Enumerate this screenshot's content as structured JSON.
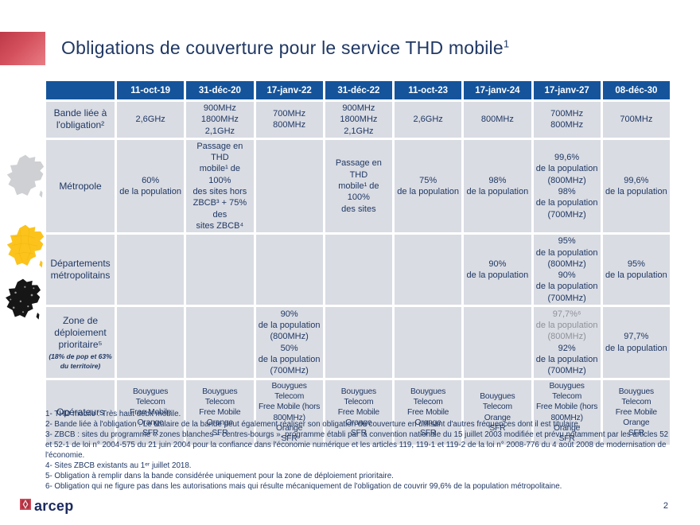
{
  "title": {
    "text": "Obligations de couverture pour le service THD mobile",
    "sup": "1"
  },
  "colors": {
    "header_bg": "#15549B",
    "cell_bg": "#D9DCE3",
    "text_navy": "#203864",
    "muted_gray": "#8F9299",
    "accent_red": "#C94753",
    "map_gray": "#CFD0D3",
    "map_yellow": "#FBC31C",
    "map_black": "#1a1a1a"
  },
  "table": {
    "columns": [
      "11-oct-19",
      "31-déc-20",
      "17-janv-22",
      "31-déc-22",
      "11-oct-23",
      "17-janv-24",
      "17-janv-27",
      "08-déc-30"
    ],
    "rows": [
      {
        "label": [
          "Bande liée à",
          "l'obligation²"
        ],
        "cells": [
          [
            "2,6GHz"
          ],
          [
            "900MHz",
            "1800MHz",
            "2,1GHz"
          ],
          [
            "700MHz",
            "800MHz"
          ],
          [
            "900MHz",
            "1800MHz",
            "2,1GHz"
          ],
          [
            "2,6GHz"
          ],
          [
            "800MHz"
          ],
          [
            "700MHz",
            "800MHz"
          ],
          [
            "700MHz"
          ]
        ]
      },
      {
        "label": [
          "Métropole"
        ],
        "icon": "france-map-gray",
        "cells": [
          [
            "60%",
            "de la population"
          ],
          [
            "Passage en THD",
            "mobile¹ de 100%",
            "des sites  hors",
            "ZBCB³ + 75% des",
            "sites ZBCB⁴"
          ],
          [],
          [
            "Passage en THD",
            "mobile¹ de 100%",
            "des sites"
          ],
          [
            "75%",
            "de la population"
          ],
          [
            "98%",
            "de la population"
          ],
          [
            "99,6%",
            "de la population",
            "(800MHz)",
            "98%",
            "de la population",
            "(700MHz)"
          ],
          [
            "99,6%",
            "de la population"
          ]
        ]
      },
      {
        "label": [
          "Départements",
          "métropolitains"
        ],
        "icon": "france-map-yellow",
        "cells": [
          [],
          [],
          [],
          [],
          [],
          [
            "90%",
            "de la population"
          ],
          [
            "95%",
            "de la population",
            "(800MHz)",
            "90%",
            "de la population",
            "(700MHz)"
          ],
          [
            "95%",
            "de la population"
          ]
        ]
      },
      {
        "label": [
          "Zone de",
          "déploiement",
          "prioritaire⁵"
        ],
        "note": [
          "(18% de pop et 63%",
          "du territoire)"
        ],
        "icon": "france-map-dots",
        "cells": [
          [],
          [],
          [
            "90%",
            "de la population",
            "(800MHz)",
            "50%",
            "de la population",
            "(700MHz)"
          ],
          [],
          [],
          [],
          [
            {
              "text": "97,7%⁶",
              "muted": true
            },
            {
              "text": "de la population",
              "muted": true
            },
            {
              "text": "(800MHz)",
              "muted": true
            },
            "92%",
            "de la population",
            "(700MHz)"
          ],
          [
            "97,7%",
            "de la population"
          ]
        ]
      },
      {
        "label": [
          "Opérateurs"
        ],
        "small": true,
        "cells": [
          [
            "Bouygues Telecom",
            "Free Mobile",
            "Orange",
            "SFR"
          ],
          [
            "Bouygues Telecom",
            "Free Mobile",
            "Orange",
            "SFR"
          ],
          [
            "Bouygues Telecom",
            "Free Mobile (hors",
            "800MHz)",
            "Orange",
            "SFR"
          ],
          [
            "Bouygues Telecom",
            "Free Mobile",
            "Orange",
            "SFR"
          ],
          [
            "Bouygues Telecom",
            "Free Mobile",
            "Orange",
            "SFR"
          ],
          [
            "Bouygues Telecom",
            "Orange",
            "SFR"
          ],
          [
            "Bouygues Telecom",
            "Free Mobile (hors",
            "800MHz)",
            "Orange",
            "SFR"
          ],
          [
            "Bouygues Telecom",
            "Free Mobile",
            "Orange",
            "SFR"
          ]
        ]
      }
    ]
  },
  "footnotes": [
    "1- THD mobile : Très haut débit mobile.",
    "2- Bande liée à l'obligation : Le titulaire de la bande peut également réaliser son obligation de couverture en utilisant d'autres fréquences dont il est titulaire.",
    "3- ZBCB : sites du programme « zones blanches – centres-bourgs », programme établi par la convention nationale du 15 juillet 2003 modifiée et prévu notamment par les articles 52 et 52-1 de loi n° 2004-575 du 21 juin 2004 pour la confiance dans l'économie numérique et les articles 119, 119-1 et 119-2 de la loi n° 2008-776 du 4 août 2008 de modernisation de l'économie.",
    "4- Sites ZBCB existants au 1ᵉʳ juillet 2018.",
    "5- Obligation à remplir dans la bande considérée uniquement pour la zone de déploiement prioritaire.",
    "6- Obligation qui ne figure pas dans les autorisations mais qui résulte mécaniquement de l'obligation de couvrir 99,6% de la population métropolitaine."
  ],
  "footer": {
    "logo": "arcep",
    "page": "2"
  }
}
